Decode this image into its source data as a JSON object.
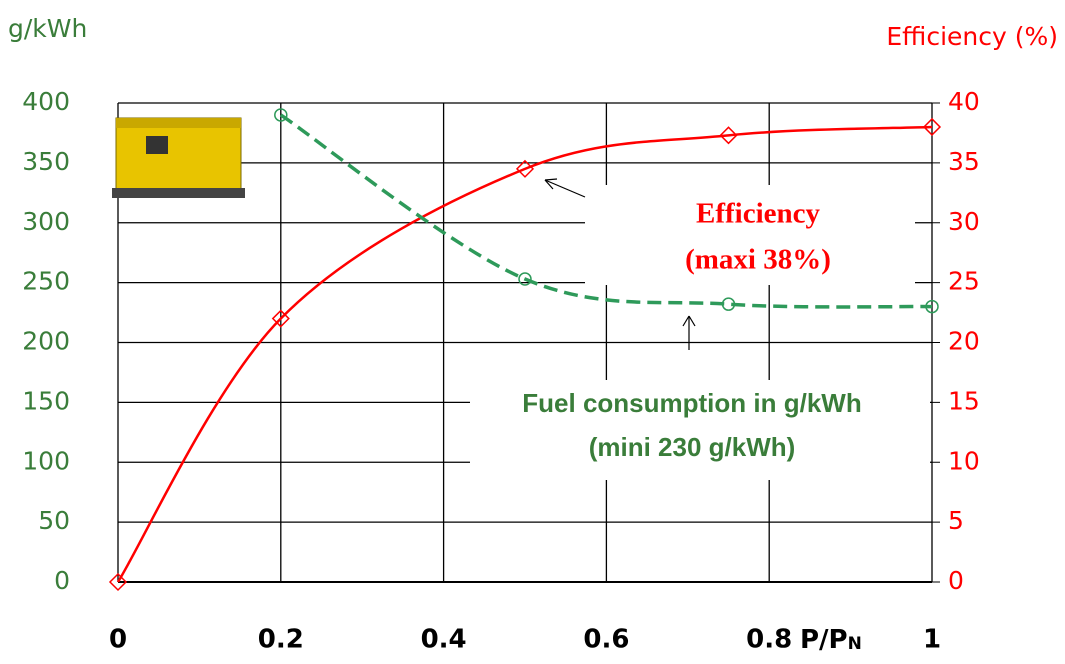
{
  "chart_data": {
    "type": "line",
    "y_label": "g/kWh",
    "y2_label": "Efficiency (%)",
    "x_label": "P/P",
    "x_label_subscript": "N",
    "annotations": [
      "Efficiency",
      "(maxi 38%)",
      "Fuel consumption in g/kWh",
      "(mini 230 g/kWh)"
    ],
    "series": [
      {
        "name": "Efficiency",
        "axis": "y2",
        "color": "#ff0000",
        "x": [
          0,
          0.2,
          0.5,
          0.75,
          1
        ],
        "values": [
          0,
          22,
          34.5,
          37.3,
          38
        ]
      },
      {
        "name": "Fuel consumption",
        "axis": "y",
        "color": "#2e9a5a",
        "x": [
          0.2,
          0.5,
          0.75,
          1
        ],
        "values": [
          390,
          253,
          232,
          230
        ]
      }
    ],
    "xlim": [
      0,
      1
    ],
    "xticks": [
      0,
      0.2,
      0.4,
      0.6,
      0.8,
      1
    ],
    "ylim": [
      0,
      400
    ],
    "yticks": [
      0,
      50,
      100,
      150,
      200,
      250,
      300,
      350,
      400
    ],
    "y2lim": [
      0,
      40
    ],
    "y2ticks": [
      0,
      5,
      10,
      15,
      20,
      25,
      30,
      35,
      40
    ],
    "grid": true
  }
}
